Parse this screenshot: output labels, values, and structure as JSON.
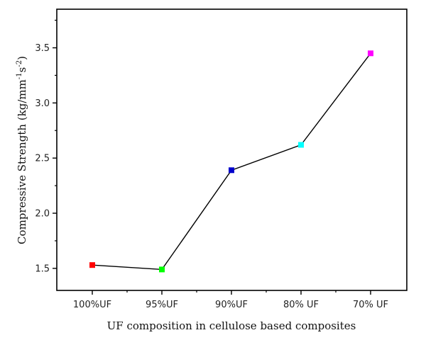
{
  "chart_data": {
    "type": "line",
    "categories": [
      "100%UF",
      "95%UF",
      "90%UF",
      "80% UF",
      "70% UF"
    ],
    "series": [
      {
        "values": [
          1.53,
          1.49,
          2.39,
          2.62,
          3.45
        ],
        "marker_colors": [
          "#ff0000",
          "#00ff00",
          "#0000cc",
          "#00ffff",
          "#ff00ff"
        ],
        "line_color": "#000000"
      }
    ],
    "xlabel": "UF composition in cellulose based composites",
    "ylabel": {
      "main": "Compressive Strength (kg/mm",
      "sup1": "-1",
      "mid": "s",
      "sup2": "-2",
      "end": ")"
    },
    "ylim": [
      1.3,
      3.85
    ],
    "yticks": [
      1.5,
      2.0,
      2.5,
      3.0,
      3.5
    ],
    "ytick_labels": [
      "1.5",
      "2.0",
      "2.5",
      "3.0",
      "3.5"
    ],
    "grid": false,
    "legend": "none"
  }
}
